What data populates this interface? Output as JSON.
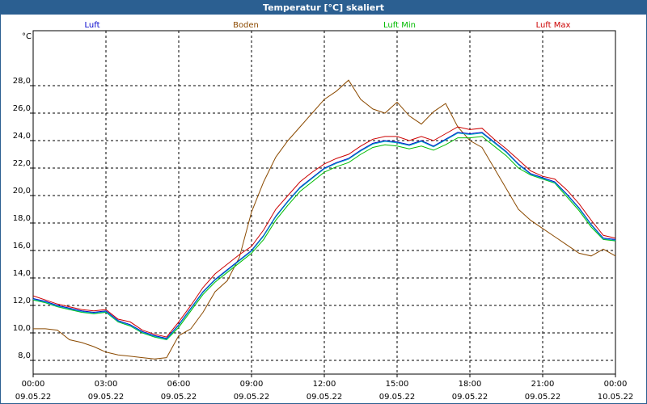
{
  "window": {
    "title": "Temperatur [°C] skaliert"
  },
  "colors": {
    "luft": "#0000cc",
    "boden": "#8b4a00",
    "luft_min": "#00bb00",
    "luft_max": "#cc0000",
    "cyan": "#00b0c0",
    "titlebar": "#2b5f91"
  },
  "chart_data": {
    "type": "line",
    "title": "Temperatur [°C] skaliert",
    "ylabel": "°C",
    "xlabel": "",
    "ylim": [
      7,
      32
    ],
    "xlim": [
      0,
      24
    ],
    "grid": true,
    "legend_position": "top",
    "y_ticks": [
      "8,0",
      "10,0",
      "12,0",
      "14,0",
      "16,0",
      "18,0",
      "20,0",
      "22,0",
      "24,0",
      "26,0",
      "28,0"
    ],
    "y_tick_values": [
      8,
      10,
      12,
      14,
      16,
      18,
      20,
      22,
      24,
      26,
      28
    ],
    "x_ticks": [
      {
        "value": 0,
        "time": "00:00",
        "date": "09.05.22"
      },
      {
        "value": 3,
        "time": "03:00",
        "date": "09.05.22"
      },
      {
        "value": 6,
        "time": "06:00",
        "date": "09.05.22"
      },
      {
        "value": 9,
        "time": "09:00",
        "date": "09.05.22"
      },
      {
        "value": 12,
        "time": "12:00",
        "date": "09.05.22"
      },
      {
        "value": 15,
        "time": "15:00",
        "date": "09.05.22"
      },
      {
        "value": 18,
        "time": "18:00",
        "date": "09.05.22"
      },
      {
        "value": 21,
        "time": "21:00",
        "date": "09.05.22"
      },
      {
        "value": 24,
        "time": "00:00",
        "date": "10.05.22"
      }
    ],
    "series": [
      {
        "key": "luft",
        "name": "Luft",
        "x": [
          0,
          0.5,
          1,
          1.5,
          2,
          2.5,
          3,
          3.5,
          4,
          4.5,
          5,
          5.5,
          6,
          6.5,
          7,
          7.5,
          8,
          8.5,
          9,
          9.5,
          10,
          10.5,
          11,
          11.5,
          12,
          12.5,
          13,
          13.5,
          14,
          14.5,
          15,
          15.5,
          16,
          16.5,
          17,
          17.5,
          18,
          18.5,
          19,
          19.5,
          20,
          20.5,
          21,
          21.5,
          22,
          22.5,
          23,
          23.5,
          24
        ],
        "values": [
          12.5,
          12.3,
          12.0,
          11.8,
          11.6,
          11.5,
          11.6,
          10.9,
          10.6,
          10.1,
          9.8,
          9.6,
          10.6,
          11.8,
          13.0,
          13.9,
          14.6,
          15.3,
          16.0,
          17.1,
          18.5,
          19.6,
          20.6,
          21.3,
          22.0,
          22.4,
          22.7,
          23.3,
          23.8,
          24.0,
          23.9,
          23.7,
          24.0,
          23.6,
          24.1,
          24.6,
          24.5,
          24.6,
          23.9,
          23.2,
          22.3,
          21.6,
          21.3,
          21.0,
          20.1,
          19.1,
          17.9,
          16.9,
          16.8
        ]
      },
      {
        "key": "boden",
        "name": "Boden",
        "x": [
          0,
          0.5,
          1,
          1.5,
          2,
          2.5,
          3,
          3.5,
          4,
          4.5,
          5,
          5.5,
          6,
          6.5,
          7,
          7.5,
          8,
          8.5,
          9,
          9.5,
          10,
          10.5,
          11,
          11.5,
          12,
          12.5,
          13,
          13.5,
          14,
          14.5,
          15,
          15.5,
          16,
          16.5,
          17,
          17.5,
          18,
          18.5,
          19,
          19.5,
          20,
          20.5,
          21,
          21.5,
          22,
          22.5,
          23,
          23.5,
          24
        ],
        "values": [
          10.3,
          10.3,
          10.2,
          9.5,
          9.3,
          9.0,
          8.6,
          8.4,
          8.3,
          8.2,
          8.1,
          8.2,
          9.8,
          10.3,
          11.5,
          13.0,
          13.8,
          15.5,
          18.8,
          21.0,
          22.8,
          24.0,
          25.0,
          26.0,
          27.0,
          27.6,
          28.4,
          27.0,
          26.3,
          26.0,
          26.8,
          25.8,
          25.2,
          26.1,
          26.7,
          25.0,
          24.0,
          23.5,
          22.0,
          20.5,
          19.0,
          18.2,
          17.6,
          17.0,
          16.4,
          15.8,
          15.6,
          16.1,
          15.6
        ]
      },
      {
        "key": "luft_min",
        "name": "Luft Min",
        "x": [
          0,
          0.5,
          1,
          1.5,
          2,
          2.5,
          3,
          3.5,
          4,
          4.5,
          5,
          5.5,
          6,
          6.5,
          7,
          7.5,
          8,
          8.5,
          9,
          9.5,
          10,
          10.5,
          11,
          11.5,
          12,
          12.5,
          13,
          13.5,
          14,
          14.5,
          15,
          15.5,
          16,
          16.5,
          17,
          17.5,
          18,
          18.5,
          19,
          19.5,
          20,
          20.5,
          21,
          21.5,
          22,
          22.5,
          23,
          23.5,
          24
        ],
        "values": [
          12.4,
          12.2,
          11.9,
          11.7,
          11.5,
          11.4,
          11.5,
          10.8,
          10.5,
          10.0,
          9.7,
          9.5,
          10.4,
          11.6,
          12.8,
          13.7,
          14.4,
          15.1,
          15.8,
          16.8,
          18.2,
          19.3,
          20.3,
          21.0,
          21.7,
          22.1,
          22.4,
          23.0,
          23.5,
          23.7,
          23.6,
          23.4,
          23.6,
          23.3,
          23.7,
          24.2,
          24.2,
          24.3,
          23.6,
          22.9,
          22.0,
          21.5,
          21.2,
          20.9,
          19.9,
          18.9,
          17.7,
          16.8,
          16.7
        ]
      },
      {
        "key": "luft_max",
        "name": "Luft Max",
        "x": [
          0,
          0.5,
          1,
          1.5,
          2,
          2.5,
          3,
          3.5,
          4,
          4.5,
          5,
          5.5,
          6,
          6.5,
          7,
          7.5,
          8,
          8.5,
          9,
          9.5,
          10,
          10.5,
          11,
          11.5,
          12,
          12.5,
          13,
          13.5,
          14,
          14.5,
          15,
          15.5,
          16,
          16.5,
          17,
          17.5,
          18,
          18.5,
          19,
          19.5,
          20,
          20.5,
          21,
          21.5,
          22,
          22.5,
          23,
          23.5,
          24
        ],
        "values": [
          12.7,
          12.4,
          12.1,
          11.9,
          11.7,
          11.6,
          11.7,
          11.0,
          10.8,
          10.2,
          9.9,
          9.7,
          10.8,
          12.0,
          13.3,
          14.3,
          15.0,
          15.7,
          16.3,
          17.5,
          19.0,
          20.0,
          21.0,
          21.7,
          22.3,
          22.7,
          23.0,
          23.6,
          24.1,
          24.3,
          24.3,
          24.0,
          24.3,
          24.0,
          24.5,
          25.0,
          24.8,
          24.9,
          24.1,
          23.4,
          22.6,
          21.8,
          21.4,
          21.2,
          20.4,
          19.4,
          18.2,
          17.1,
          16.9
        ]
      }
    ]
  }
}
